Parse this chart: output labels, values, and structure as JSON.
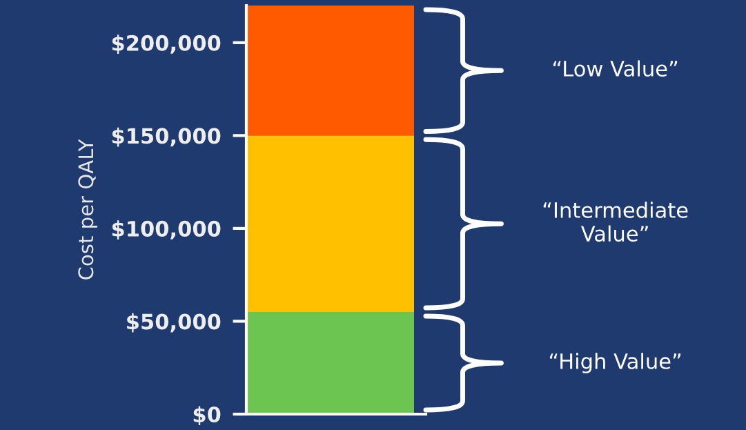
{
  "chart_data": {
    "type": "bar",
    "stacked": true,
    "ylabel": "Cost per QALY",
    "categories": [
      null
    ],
    "series": [
      {
        "name": "“High Value”",
        "color": "#6cc551",
        "values": [
          55000
        ]
      },
      {
        "name": "“Intermediate\nValue”",
        "color": "#ffc000",
        "values": [
          95000
        ]
      },
      {
        "name": "“Low Value”",
        "color": "#ff5a00",
        "values": [
          70000
        ]
      }
    ],
    "ylim": [
      0,
      220000
    ],
    "yticks": [
      {
        "value": 0,
        "label": "$0"
      },
      {
        "value": 50000,
        "label": "$50,000"
      },
      {
        "value": 100000,
        "label": "$100,000"
      },
      {
        "value": 150000,
        "label": "$150,000"
      },
      {
        "value": 200000,
        "label": "$200,000"
      }
    ],
    "tick_labels": "y",
    "grid": false
  }
}
